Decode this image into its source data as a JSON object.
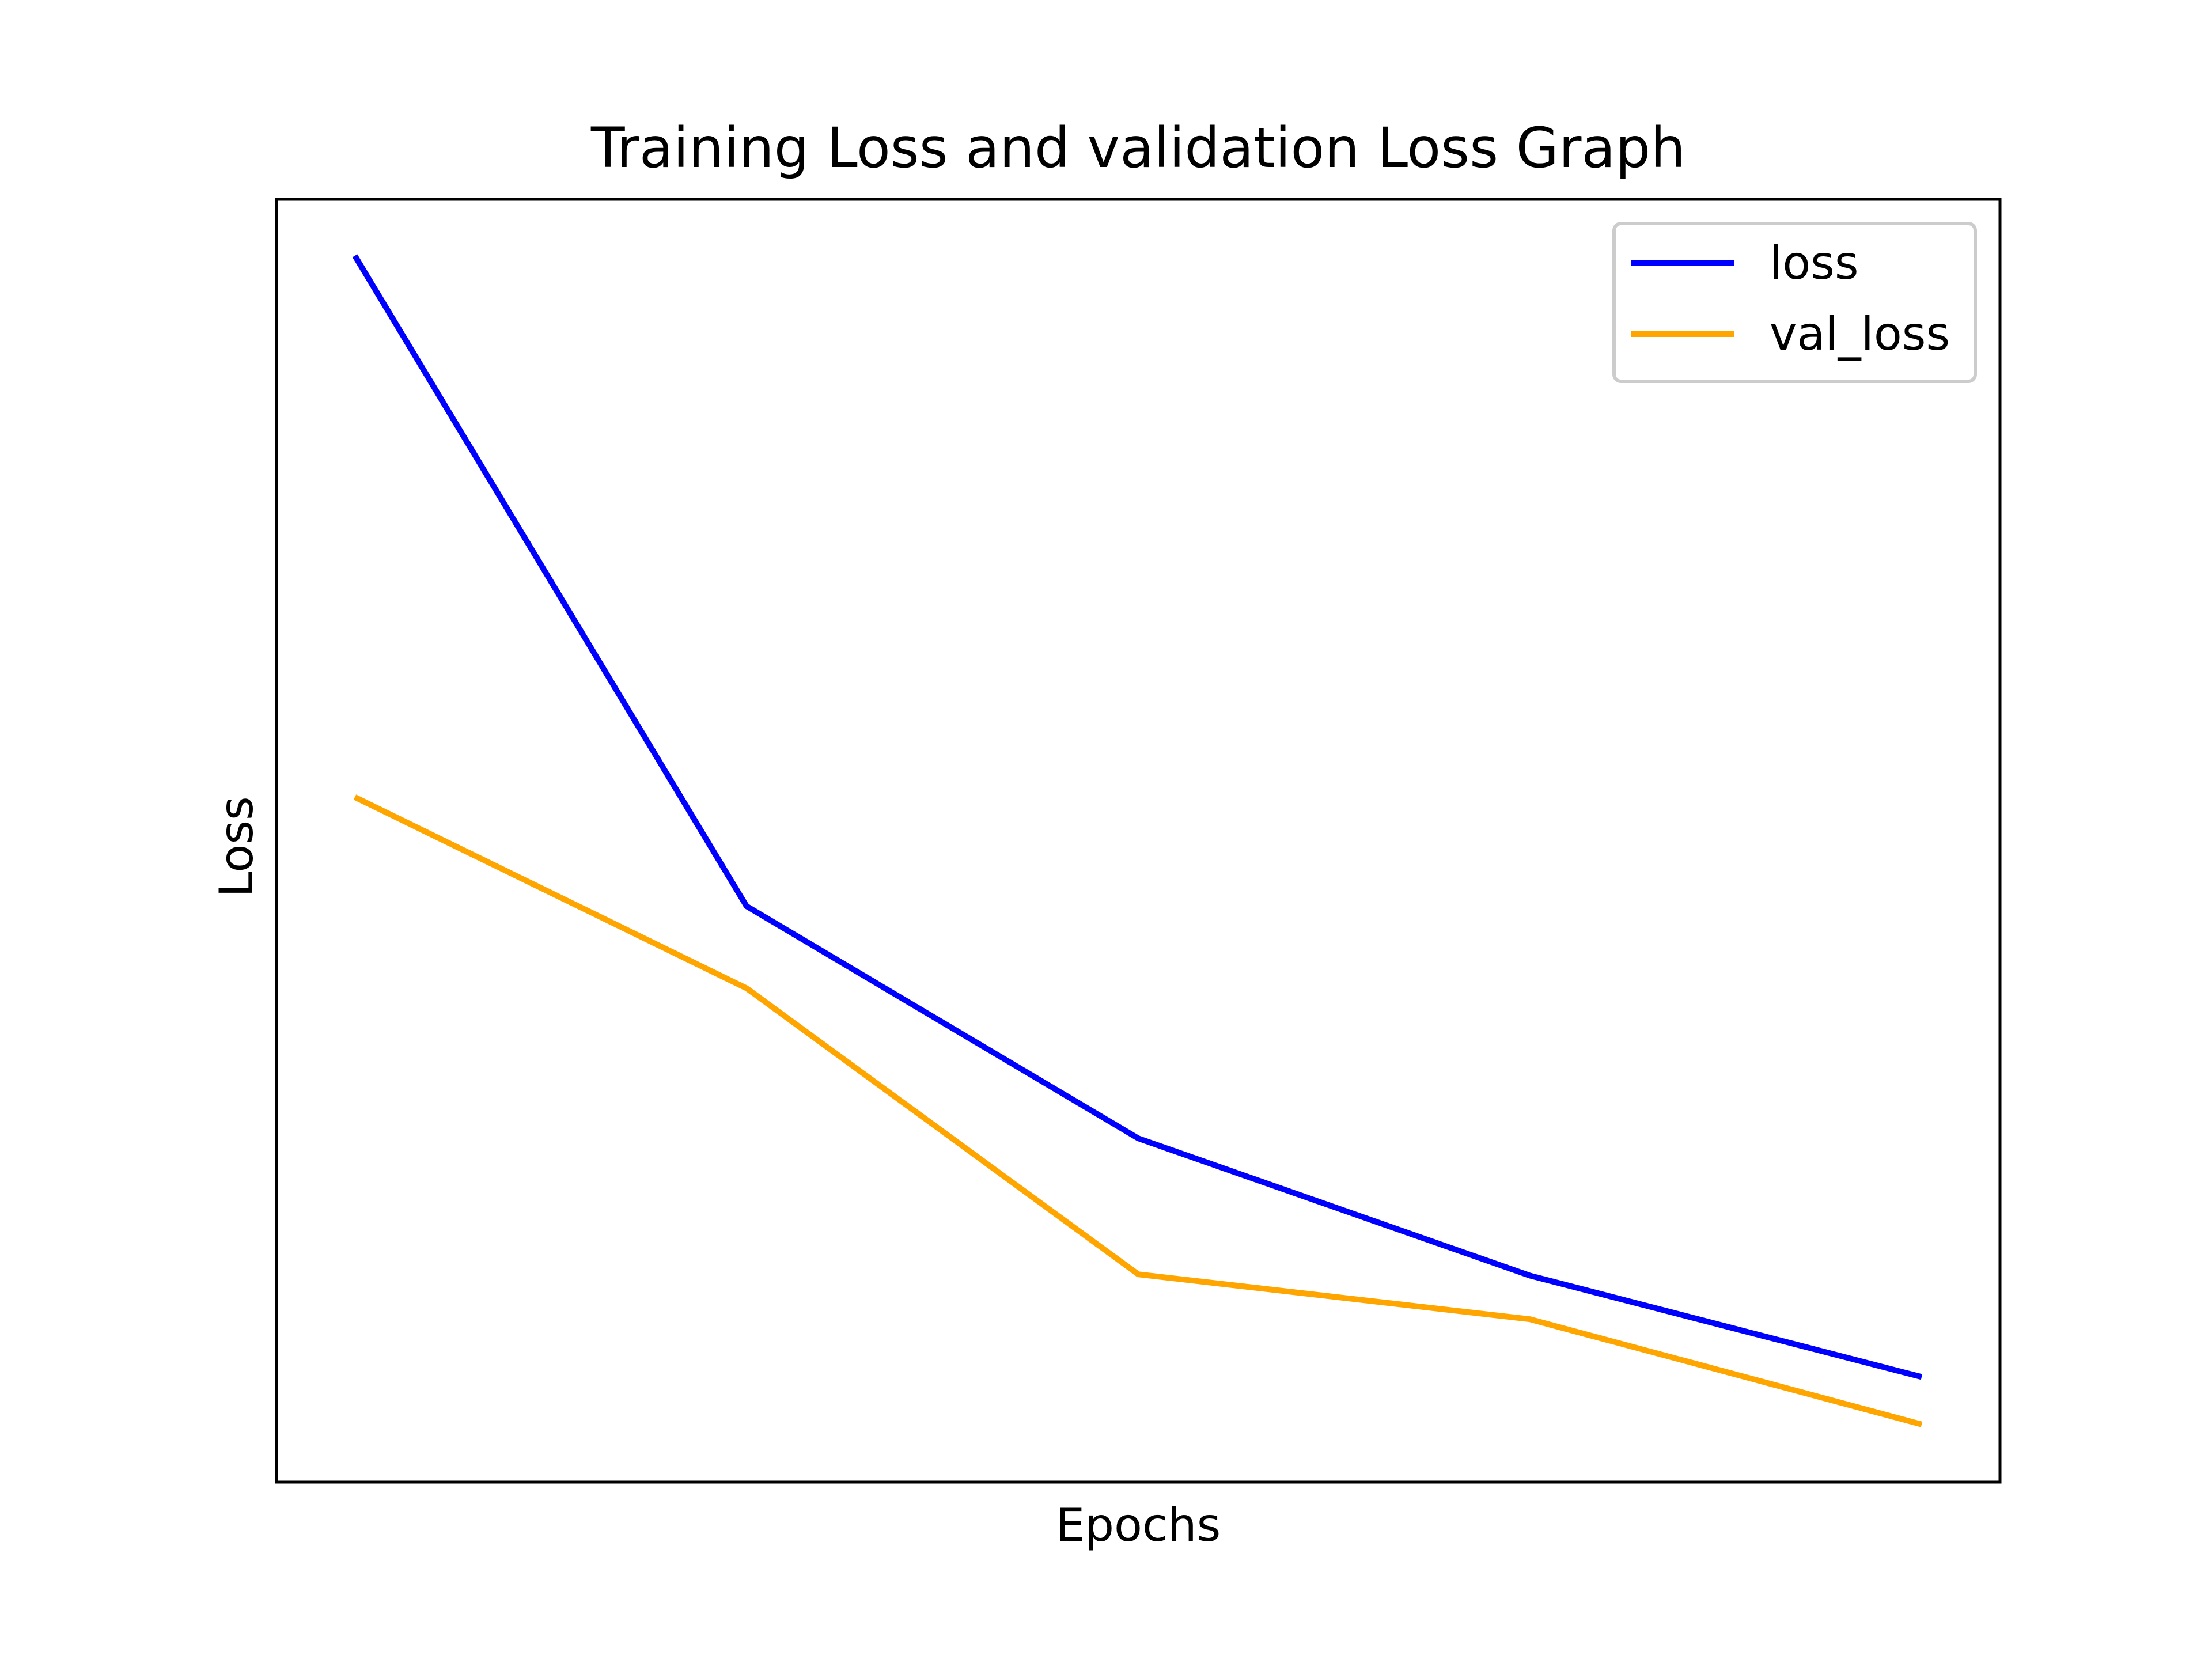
{
  "chart_data": {
    "type": "line",
    "title": "Training Loss and validation Loss Graph",
    "xlabel": "Epochs",
    "ylabel": "Loss",
    "x": [
      1,
      2,
      3,
      4,
      5
    ],
    "xlim": [
      0.8,
      5.2
    ],
    "ylim": [
      0.0,
      1.0
    ],
    "series": [
      {
        "name": "loss",
        "color": "#0000ff",
        "values": [
          0.956,
          0.449,
          0.268,
          0.161,
          0.082
        ]
      },
      {
        "name": "val_loss",
        "color": "#ffa500",
        "values": [
          0.534,
          0.385,
          0.162,
          0.127,
          0.045
        ]
      }
    ],
    "grid": false,
    "legend": "top-right",
    "x_ticks_visible": false,
    "y_ticks_visible": false
  }
}
